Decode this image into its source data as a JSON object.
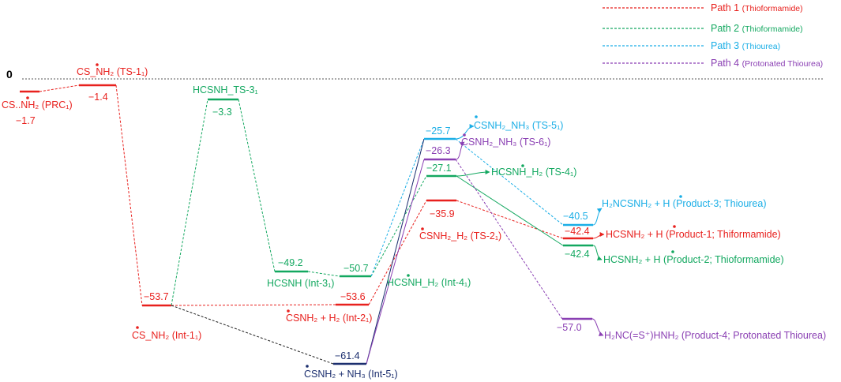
{
  "zero_label": "0",
  "colors": {
    "path1": "#e8211e",
    "path2": "#13a860",
    "path3": "#1aaee6",
    "path4": "#8a3fb3",
    "int5": "#1b2e6e",
    "connector_black": "#000000"
  },
  "legend": [
    {
      "name": "Path 1",
      "sub": "(Thioformamide)",
      "color": "#e8211e"
    },
    {
      "name": "Path 2",
      "sub": "(Thioformamide)",
      "color": "#13a860"
    },
    {
      "name": "Path 3",
      "sub": "(Thiourea)",
      "color": "#1aaee6"
    },
    {
      "name": "Path 4",
      "sub": "(Protonated Thiourea)",
      "color": "#8a3fb3"
    }
  ],
  "states": {
    "prc": {
      "value": "−1.7",
      "label": "CS..NH₂ (PRC₁)"
    },
    "ts1": {
      "value": "−1.4",
      "label": "CS_NH₂ (TS-1₁)"
    },
    "int1": {
      "value": "−53.7",
      "label": "CS_NH₂ (Int-1₁)"
    },
    "ts3": {
      "value": "−3.3",
      "label": "HCSNH_TS-3₁"
    },
    "int3": {
      "value": "−49.2",
      "label": "HCSNH (Int-3₁)"
    },
    "int4": {
      "value": "−50.7",
      "label": "HCSNH_H₂ (Int-4₁)"
    },
    "int2": {
      "value": "−53.6",
      "label": "CSNH₂ + H₂ (Int-2₁)"
    },
    "int5": {
      "value": "−61.4",
      "label": "CSNH₂ + NH₃ (Int-5₁)"
    },
    "ts5": {
      "value": "−25.7",
      "label": "CSNH₂_NH₃ (TS-5₁)"
    },
    "ts6": {
      "value": "−26.3",
      "label": "CSNH₂_NH₃ (TS-6₁)"
    },
    "ts4": {
      "value": "−27.1",
      "label": "HCSNH_H₂ (TS-4₁)"
    },
    "ts2": {
      "value": "−35.9",
      "label": "CSNH₂_H₂ (TS-2₁)"
    },
    "prod3": {
      "value": "−40.5",
      "label": "H₂NCSNH₂ + H (Product-3; Thiourea)"
    },
    "prod1": {
      "value": "−42.4",
      "label": "HCSNH₂ + H (Product-1; Thiformamide)"
    },
    "prod2": {
      "value": "−42.4",
      "label": "HCSNH₂ + H (Product-2; Thioformamide)"
    },
    "prod4": {
      "value": "−57.0",
      "label": "H₂NC(=S⁺)HNH₂ (Product-4; Protonated Thiourea)"
    }
  }
}
